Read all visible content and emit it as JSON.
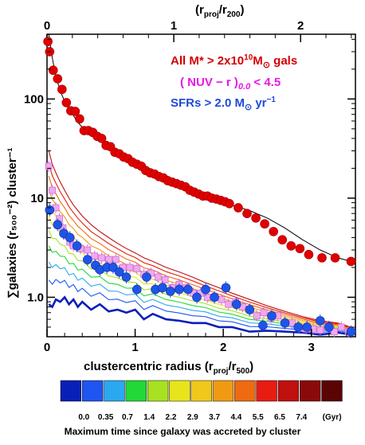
{
  "chart_data": {
    "type": "line",
    "xlabel_main": "clustercentric radius (r",
    "xlabel_sub": "proj",
    "xlabel_mid": "/r",
    "xlabel_sub2": "500",
    "xlabel_end": ")",
    "xlim": [
      0,
      3.5
    ],
    "x_ticks": [
      "0",
      "1",
      "2",
      "3"
    ],
    "top_axis": {
      "label_main": "(r",
      "label_sub": "proj",
      "label_mid": "/r",
      "label_sub2": "200",
      "label_end": ")",
      "ticks": [
        "0",
        "1",
        "2"
      ],
      "scale_factor": 0.695
    },
    "ylabel": "∑galaxies (r₅₀₀⁻²) cluster⁻¹",
    "y_scale": "log",
    "ylim": [
      0.4,
      450
    ],
    "y_ticks": [
      "1.0",
      "10",
      "100"
    ],
    "legend": {
      "all": {
        "text_a": "All M* > 2x10",
        "sup": "10",
        "text_b": "M",
        "sun": "⊙",
        "text_c": " gals",
        "color": "#d40000"
      },
      "nuv": {
        "text_a": "( NUV − r )",
        "sub": "0.0",
        "text_b": " < 4.5",
        "color": "#e818e8"
      },
      "sfr": {
        "text_a": "SFRs > 2.0 M",
        "sun": "⊙",
        "text_b": " yr",
        "sup": "−1",
        "color": "#1f4ad8"
      }
    },
    "series": [
      {
        "name": "All M* > 2x10^10 M⊙ gals",
        "marker": "circle",
        "color": "#e00000",
        "x": [
          0.01,
          0.03,
          0.07,
          0.12,
          0.17,
          0.22,
          0.27,
          0.32,
          0.37,
          0.42,
          0.47,
          0.52,
          0.57,
          0.62,
          0.67,
          0.72,
          0.77,
          0.82,
          0.87,
          0.92,
          0.97,
          1.02,
          1.07,
          1.12,
          1.17,
          1.22,
          1.27,
          1.32,
          1.37,
          1.42,
          1.47,
          1.52,
          1.57,
          1.62,
          1.67,
          1.72,
          1.77,
          1.82,
          1.87,
          1.92,
          1.97,
          2.02,
          2.07,
          2.17,
          2.27,
          2.37,
          2.47,
          2.57,
          2.67,
          2.77,
          2.87,
          2.97,
          3.12,
          3.27,
          3.45
        ],
        "y": [
          380,
          300,
          195,
          160,
          125,
          92,
          76,
          75,
          63,
          48,
          48,
          46,
          42,
          40,
          34,
          33,
          29,
          28,
          26,
          25,
          23,
          22,
          21,
          19,
          18,
          17.5,
          16.5,
          16,
          15,
          14.5,
          14,
          13.5,
          13,
          12,
          11.5,
          11,
          10.5,
          10.5,
          10,
          9.8,
          9.5,
          9.2,
          8.8,
          8.0,
          7.0,
          6.3,
          5.5,
          4.6,
          3.8,
          3.3,
          3.1,
          2.7,
          2.5,
          2.5,
          2.3
        ]
      },
      {
        "name": "( NUV − r )0.0 < 4.5",
        "marker": "square",
        "color": "#f0a8f0",
        "edge": "#d070d0",
        "x": [
          0.02,
          0.06,
          0.1,
          0.14,
          0.18,
          0.22,
          0.26,
          0.3,
          0.38,
          0.46,
          0.54,
          0.62,
          0.7,
          0.78,
          0.86,
          0.94,
          1.02,
          1.1,
          1.18,
          1.26,
          1.34,
          1.42,
          1.5,
          1.58,
          1.66,
          1.74,
          1.82,
          1.9,
          1.98,
          2.06,
          2.14,
          2.22,
          2.3,
          2.38,
          2.46,
          2.54,
          2.62,
          2.7,
          2.78,
          2.86,
          2.94,
          3.02,
          3.1,
          3.18,
          3.26,
          3.34,
          3.42
        ],
        "y": [
          21,
          12,
          8,
          6.2,
          5,
          4.2,
          3.6,
          3.3,
          3.1,
          3.0,
          2.6,
          2.5,
          2.4,
          2.4,
          2.0,
          2.0,
          1.95,
          1.7,
          1.75,
          1.6,
          1.5,
          1.25,
          1.35,
          1.25,
          1.1,
          1.1,
          1.0,
          1.0,
          0.95,
          0.85,
          0.9,
          0.8,
          0.75,
          0.65,
          0.7,
          0.62,
          0.65,
          0.55,
          0.55,
          0.5,
          0.48,
          0.48,
          0.47,
          0.5,
          0.45,
          0.5,
          0.45
        ]
      },
      {
        "name": "SFRs > 2.0 M⊙ yr^-1",
        "marker": "circle",
        "color": "#1e55e8",
        "x": [
          0.03,
          0.12,
          0.19,
          0.26,
          0.34,
          0.46,
          0.55,
          0.6,
          0.68,
          0.75,
          0.82,
          0.9,
          1.02,
          1.13,
          1.23,
          1.31,
          1.4,
          1.5,
          1.6,
          1.7,
          1.8,
          1.9,
          2.03,
          2.15,
          2.3,
          2.45,
          2.55,
          2.7,
          2.85,
          2.95,
          3.1,
          3.2,
          3.45
        ],
        "y": [
          7.6,
          5.4,
          4.4,
          4.0,
          3.3,
          2.4,
          2.1,
          1.9,
          2.0,
          2.0,
          1.8,
          1.6,
          1.2,
          1.6,
          1.2,
          1.25,
          1.15,
          1.2,
          1.2,
          1.0,
          1.2,
          1.0,
          1.25,
          0.85,
          0.75,
          0.52,
          0.65,
          0.55,
          0.5,
          0.5,
          0.58,
          0.5,
          0.45
        ]
      }
    ],
    "colorbar": {
      "colors": [
        "#0a1fb8",
        "#1f55f0",
        "#2aa8f0",
        "#22d836",
        "#a8e022",
        "#e8e41c",
        "#f0c81c",
        "#f09a14",
        "#f06a10",
        "#e81c10",
        "#c01010",
        "#8a0a0a",
        "#5a0404"
      ],
      "tick_labels": [
        "0.0",
        "0.35",
        "0.7",
        "1.4",
        "2.2",
        "2.9",
        "3.7",
        "4.4",
        "5.5",
        "6.5",
        "7.4",
        "(Gyr)"
      ],
      "caption": "Maximum time since galaxy was accreted by cluster"
    },
    "model_lines": {
      "x": [
        0.02,
        0.06,
        0.1,
        0.15,
        0.2,
        0.25,
        0.3,
        0.35,
        0.4,
        0.5,
        0.6,
        0.7,
        0.8,
        0.9,
        1.0,
        1.1,
        1.2,
        1.35,
        1.5,
        1.65,
        1.8,
        1.95,
        2.1,
        2.3,
        2.5,
        2.7,
        2.9,
        3.1,
        3.3,
        3.45
      ],
      "tmax_gyr": [
        0.0,
        0.35,
        0.7,
        1.4,
        2.2,
        2.9,
        3.7,
        4.4,
        5.5,
        6.5,
        7.4
      ],
      "colors": [
        "#0a1fb8",
        "#1f55f0",
        "#2aa8f0",
        "#22d836",
        "#a8e022",
        "#e8e41c",
        "#f0c81c",
        "#f09a14",
        "#f06a10",
        "#e81c10",
        "#c01010"
      ],
      "y_top": [
        30,
        22,
        18,
        14.5,
        12,
        10,
        8.5,
        7.5,
        6.6,
        5.4,
        4.6,
        4.0,
        3.5,
        3.1,
        2.8,
        2.5,
        2.3,
        2.0,
        1.8,
        1.6,
        1.4,
        1.25,
        1.1,
        0.95,
        0.82,
        0.72,
        0.64,
        0.58,
        0.55,
        0.5
      ],
      "y_bottom": [
        0.85,
        0.8,
        0.95,
        0.9,
        1.0,
        0.85,
        0.95,
        0.8,
        0.9,
        0.75,
        0.85,
        0.72,
        0.75,
        0.7,
        0.75,
        0.6,
        0.68,
        0.6,
        0.58,
        0.55,
        0.55,
        0.5,
        0.5,
        0.45,
        0.46,
        0.45,
        0.44,
        0.42,
        0.44,
        0.42
      ],
      "all_model": [
        450,
        260,
        170,
        120,
        95,
        78,
        68,
        58,
        52,
        45,
        39,
        33,
        29,
        26,
        23,
        21,
        19,
        17,
        14,
        12.5,
        11,
        9.5,
        8.5,
        7.5,
        6.3,
        5.0,
        3.8,
        3.0,
        2.5,
        2.3
      ]
    }
  }
}
